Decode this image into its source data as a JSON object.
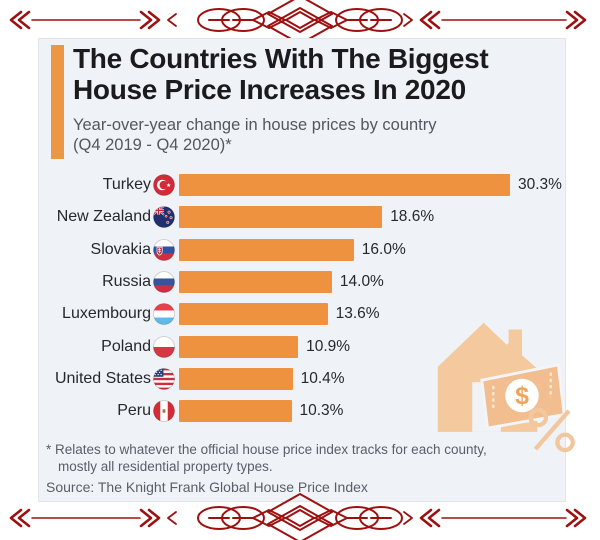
{
  "theme": {
    "ornament": "#9e1010",
    "bar": "#EF9240",
    "accent": "#EE9743",
    "card_bg": "#EFF2F7",
    "title": "#1B1B1E",
    "subtitle": "#54575D",
    "text": "#26282C",
    "muted": "#5A5E66",
    "illo": "#F5C99E"
  },
  "header": {
    "title_line1": "The Countries With The Biggest",
    "title_line2": "House Price Increases In 2020",
    "subtitle_line1": "Year-over-year change in house prices by country",
    "subtitle_line2": "(Q4 2019 - Q4 2020)*"
  },
  "chart_data": {
    "type": "bar",
    "orientation": "horizontal",
    "title": "The Countries With The Biggest House Price Increases In 2020",
    "subtitle": "Year-over-year change in house prices by country (Q4 2019 - Q4 2020)*",
    "unit": "%",
    "xlim": [
      0,
      32
    ],
    "grid": false,
    "bar_color": "#EF9240",
    "categories": [
      "Turkey",
      "New Zealand",
      "Slovakia",
      "Russia",
      "Luxembourg",
      "Poland",
      "United States",
      "Peru"
    ],
    "values": [
      30.3,
      18.6,
      16.0,
      14.0,
      13.6,
      10.9,
      10.4,
      10.3
    ],
    "value_labels": [
      "30.3%",
      "18.6%",
      "16.0%",
      "14.0%",
      "13.6%",
      "10.9%",
      "10.4%",
      "10.3%"
    ],
    "flags": [
      "turkey",
      "new-zealand",
      "slovakia",
      "russia",
      "luxembourg",
      "poland",
      "united-states",
      "peru"
    ]
  },
  "footer": {
    "footnote_line1": "* Relates to whatever the official house price index tracks for each county,",
    "footnote_line2": "mostly all residential property types.",
    "source": "Source: The Knight Frank Global House Price Index"
  }
}
